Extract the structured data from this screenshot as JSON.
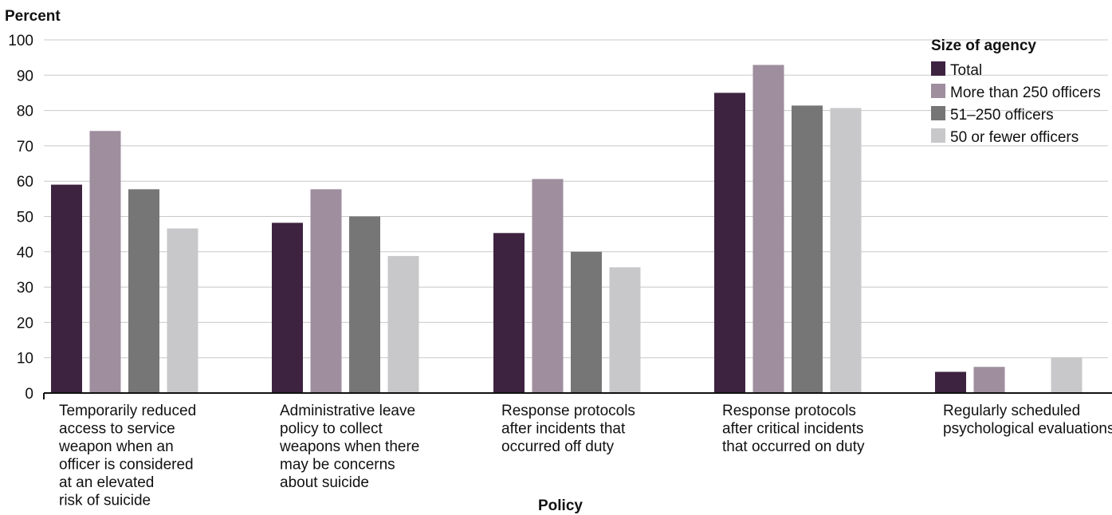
{
  "chart_data": {
    "type": "bar",
    "ylabel": "Percent",
    "xlabel": "Policy",
    "ylim": [
      0,
      100
    ],
    "yticks": [
      0,
      10,
      20,
      30,
      40,
      50,
      60,
      70,
      80,
      90,
      100
    ],
    "grid": true,
    "legend_position": "top-right",
    "legend_title": "Size of agency",
    "categories": [
      [
        "Temporarily reduced",
        "access to service",
        "weapon when an",
        "officer is considered",
        "at an elevated",
        "risk of suicide"
      ],
      [
        "Administrative leave",
        "policy to collect",
        "weapons when there",
        "may be concerns",
        "about suicide"
      ],
      [
        "Response protocols",
        "after incidents that",
        "occurred off duty"
      ],
      [
        "Response protocols",
        "after critical incidents",
        "that occurred on duty"
      ],
      [
        "Regularly scheduled",
        "psychological evaluations"
      ]
    ],
    "series": [
      {
        "name": "Total",
        "color": "#3d2340",
        "values": [
          59.0,
          48.2,
          45.3,
          85.0,
          6.0
        ]
      },
      {
        "name": "More than 250 officers",
        "color": "#9e8e9e",
        "values": [
          74.2,
          57.7,
          60.6,
          92.9,
          7.4
        ]
      },
      {
        "name": "51–250 officers",
        "color": "#767676",
        "values": [
          57.7,
          50.0,
          40.0,
          81.4,
          0
        ]
      },
      {
        "name": "50 or fewer officers",
        "color": "#c8c8ca",
        "values": [
          46.6,
          38.8,
          35.6,
          80.7,
          10.1
        ]
      }
    ]
  }
}
